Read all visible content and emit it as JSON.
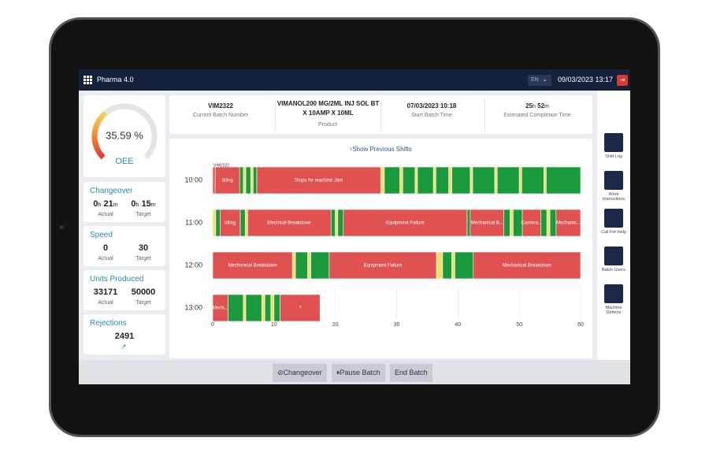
{
  "header": {
    "app_name": "Pharma 4.0",
    "language": "EN",
    "datetime": "09/03/2023 13:17"
  },
  "oee": {
    "value": 35.59,
    "label": "35.59 %",
    "name": "OEE"
  },
  "units": {
    "hour": "h",
    "minute": "m"
  },
  "kpis": {
    "changeover": {
      "title": "Changeover",
      "actual": {
        "hours": "0",
        "minutes": "21"
      },
      "target": {
        "hours": "0",
        "minutes": "15"
      },
      "actual_label": "Actual",
      "target_label": "Target"
    },
    "speed": {
      "title": "Speed",
      "actual": "0",
      "target": "30",
      "actual_label": "Actual",
      "target_label": "Target"
    },
    "units_produced": {
      "title": "Units Produced",
      "actual": "33171",
      "target": "50000",
      "actual_label": "Actual",
      "target_label": "Target"
    },
    "rejections": {
      "title": "Rejections",
      "value": "2491"
    }
  },
  "info": [
    {
      "value": "VIM2322",
      "label": "Current Batch Number"
    },
    {
      "value": "VIMANOL200 MG/2ML INJ SOL BT X 10AMP X 10ML",
      "label": "Product"
    },
    {
      "value": "07/03/2023 10:18",
      "label": "Start Batch Time"
    },
    {
      "hours": "25",
      "minutes": "52",
      "label": "Estimated Completion Time"
    }
  ],
  "timeline": {
    "link": "↑Show Previous Shifts",
    "xlim": [
      0,
      60
    ],
    "xticks": [
      0,
      10,
      20,
      30,
      40,
      50,
      60
    ],
    "state_colors": {
      "run": "#1a9a3c",
      "idle": "#f0e06a",
      "stop": "#e05252"
    },
    "rows": [
      {
        "label": "10:00",
        "segments": [
          {
            "start": 0,
            "end": 0.4,
            "state": "stop"
          },
          {
            "start": 0.4,
            "end": 4.4,
            "state": "stop",
            "label": "Idling"
          },
          {
            "start": 4.4,
            "end": 5,
            "state": "run"
          },
          {
            "start": 5,
            "end": 5.4,
            "state": "idle"
          },
          {
            "start": 5.4,
            "end": 6.2,
            "state": "run"
          },
          {
            "start": 6.2,
            "end": 6.6,
            "state": "idle"
          },
          {
            "start": 6.6,
            "end": 7.2,
            "state": "run"
          },
          {
            "start": 7.2,
            "end": 27.4,
            "state": "stop",
            "label": "Stops for machine Jam"
          },
          {
            "start": 27.4,
            "end": 28,
            "state": "idle"
          },
          {
            "start": 28,
            "end": 30.5,
            "state": "run"
          },
          {
            "start": 30.5,
            "end": 31,
            "state": "idle"
          },
          {
            "start": 31,
            "end": 33,
            "state": "run"
          },
          {
            "start": 33,
            "end": 33.4,
            "state": "idle"
          },
          {
            "start": 33.4,
            "end": 36,
            "state": "run"
          },
          {
            "start": 36,
            "end": 36.4,
            "state": "idle"
          },
          {
            "start": 36.4,
            "end": 38.5,
            "state": "run"
          },
          {
            "start": 38.5,
            "end": 39,
            "state": "idle"
          },
          {
            "start": 39,
            "end": 42,
            "state": "run"
          },
          {
            "start": 42,
            "end": 42.4,
            "state": "idle"
          },
          {
            "start": 42.4,
            "end": 46,
            "state": "run"
          },
          {
            "start": 46,
            "end": 46.4,
            "state": "idle"
          },
          {
            "start": 46.4,
            "end": 50,
            "state": "run"
          },
          {
            "start": 50,
            "end": 50.4,
            "state": "idle"
          },
          {
            "start": 50.4,
            "end": 54,
            "state": "run"
          },
          {
            "start": 54,
            "end": 54.4,
            "state": "idle"
          },
          {
            "start": 54.4,
            "end": 60,
            "state": "run"
          }
        ]
      },
      {
        "label": "11:00",
        "segments": [
          {
            "start": 0,
            "end": 0.5,
            "state": "idle"
          },
          {
            "start": 0.5,
            "end": 1.2,
            "state": "run"
          },
          {
            "start": 1.2,
            "end": 4.5,
            "state": "stop",
            "label": "Idling"
          },
          {
            "start": 4.5,
            "end": 5.3,
            "state": "run"
          },
          {
            "start": 5.3,
            "end": 5.7,
            "state": "idle"
          },
          {
            "start": 5.7,
            "end": 19.3,
            "state": "stop",
            "label": "Electrical Breakdown"
          },
          {
            "start": 19.3,
            "end": 20,
            "state": "run"
          },
          {
            "start": 20,
            "end": 20.4,
            "state": "idle"
          },
          {
            "start": 20.4,
            "end": 21.3,
            "state": "run"
          },
          {
            "start": 21.3,
            "end": 41.5,
            "state": "stop",
            "label": "Equipment Failure"
          },
          {
            "start": 41.5,
            "end": 42,
            "state": "run"
          },
          {
            "start": 42,
            "end": 47.5,
            "state": "stop",
            "label": "Mechanical B..."
          },
          {
            "start": 47.5,
            "end": 48.5,
            "state": "run"
          },
          {
            "start": 48.5,
            "end": 49,
            "state": "idle"
          },
          {
            "start": 49,
            "end": 50.5,
            "state": "run"
          },
          {
            "start": 50.5,
            "end": 53.5,
            "state": "stop",
            "label": "Camera..."
          },
          {
            "start": 53.5,
            "end": 54.5,
            "state": "run"
          },
          {
            "start": 54.5,
            "end": 55,
            "state": "idle"
          },
          {
            "start": 55,
            "end": 56,
            "state": "run"
          },
          {
            "start": 56,
            "end": 60,
            "state": "stop",
            "label": "Mechanic..."
          }
        ]
      },
      {
        "label": "12:00",
        "segments": [
          {
            "start": 0,
            "end": 13,
            "state": "stop",
            "label": "Mechanical Breakdown"
          },
          {
            "start": 13,
            "end": 13.5,
            "state": "idle"
          },
          {
            "start": 13.5,
            "end": 15.5,
            "state": "run"
          },
          {
            "start": 15.5,
            "end": 16,
            "state": "idle"
          },
          {
            "start": 16,
            "end": 19,
            "state": "run"
          },
          {
            "start": 19,
            "end": 36.5,
            "state": "stop",
            "label": "Equipment Failure"
          },
          {
            "start": 36.5,
            "end": 37.5,
            "state": "idle"
          },
          {
            "start": 37.5,
            "end": 39,
            "state": "run"
          },
          {
            "start": 39,
            "end": 39.5,
            "state": "idle"
          },
          {
            "start": 39.5,
            "end": 42.5,
            "state": "run"
          },
          {
            "start": 42.5,
            "end": 60,
            "state": "stop",
            "label": "Mechanical Breakdown"
          }
        ]
      },
      {
        "label": "13:00",
        "segments": [
          {
            "start": 0,
            "end": 2.5,
            "state": "stop",
            "label": "Mech..."
          },
          {
            "start": 2.5,
            "end": 5,
            "state": "run"
          },
          {
            "start": 5,
            "end": 5.4,
            "state": "idle"
          },
          {
            "start": 5.4,
            "end": 8,
            "state": "run"
          },
          {
            "start": 8,
            "end": 8.5,
            "state": "idle"
          },
          {
            "start": 8.5,
            "end": 9.5,
            "state": "run"
          },
          {
            "start": 9.5,
            "end": 10,
            "state": "idle"
          },
          {
            "start": 10,
            "end": 11,
            "state": "run"
          },
          {
            "start": 11,
            "end": 17.5,
            "state": "stop",
            "label": "?"
          }
        ]
      }
    ]
  },
  "sidebar": [
    "Shift Log",
    "Work Instructions",
    "Call For Help",
    "Batch Users",
    "Machine Defects"
  ],
  "actions": [
    "Changeover",
    "Pause Batch",
    "End Batch"
  ]
}
